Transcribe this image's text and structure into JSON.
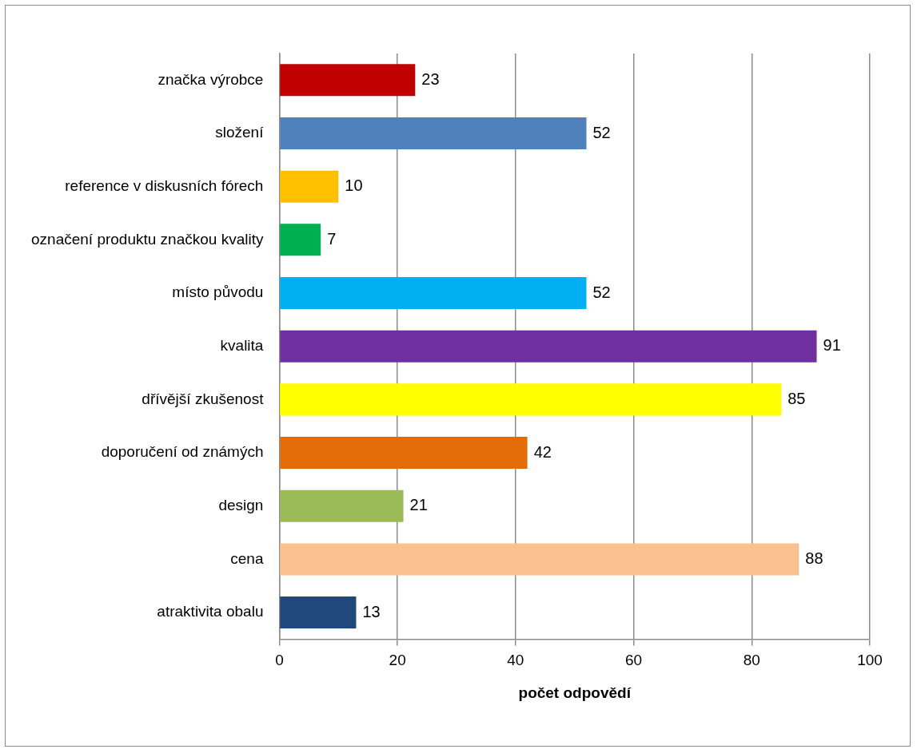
{
  "chart_data": {
    "type": "bar",
    "orientation": "horizontal",
    "xlabel": "počet odpovědí",
    "categories": [
      "značka výrobce",
      "složení",
      "reference v diskusních fórech",
      "označení produktu značkou kvality",
      "místo původu",
      "kvalita",
      "dřívější zkušenost",
      "doporučení od známých",
      "design",
      "cena",
      "atraktivita obalu"
    ],
    "values": [
      23,
      52,
      10,
      7,
      52,
      91,
      85,
      42,
      21,
      88,
      13
    ],
    "colors": [
      "#c00000",
      "#4f81bd",
      "#ffc000",
      "#00b050",
      "#00b0f0",
      "#7030a0",
      "#ffff00",
      "#e36c09",
      "#9bbb59",
      "#fac090",
      "#1f497d"
    ],
    "xlim": [
      0,
      100
    ],
    "xticks": [
      0,
      20,
      40,
      60,
      80,
      100
    ],
    "grid": "x",
    "legend": false,
    "data_labels": true
  }
}
